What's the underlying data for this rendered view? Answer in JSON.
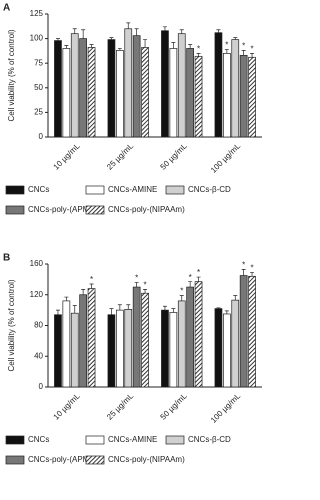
{
  "chart_data": [
    {
      "type": "bar",
      "panel_label": "A",
      "y_label": "Cell viability (% of control)",
      "categories": [
        "10 µg/mL",
        "25 µg/mL",
        "50 µg/mL",
        "100 µg/mL"
      ],
      "series": [
        {
          "name": "CNCs",
          "color": "#111111",
          "values": [
            98,
            99,
            108,
            106
          ],
          "errors": [
            2,
            2,
            4,
            3
          ]
        },
        {
          "name": "CNCs-AMINE",
          "color": "#ffffff",
          "values": [
            90,
            88,
            90,
            85
          ],
          "errors": [
            3,
            2,
            6,
            4
          ]
        },
        {
          "name": "CNCs-β-CD",
          "color": "#d0d0d0",
          "values": [
            105,
            110,
            105,
            99
          ],
          "errors": [
            5,
            6,
            4,
            2
          ]
        },
        {
          "name": "CNCs-poly-(APMA)",
          "color": "#777777",
          "values": [
            100,
            103,
            90,
            83
          ],
          "errors": [
            9,
            7,
            4,
            5
          ]
        },
        {
          "name": "CNCs-poly-(NIPAAm)",
          "color": "#555555",
          "hatch": true,
          "values": [
            91,
            91,
            82,
            81
          ],
          "errors": [
            3,
            8,
            3,
            4
          ]
        }
      ],
      "annotations": [
        {
          "text": "*",
          "series": 4,
          "category": 2
        },
        {
          "text": "*",
          "series": 1,
          "category": 3
        },
        {
          "text": "*",
          "series": 3,
          "category": 3
        },
        {
          "text": "*",
          "series": 4,
          "category": 3
        }
      ],
      "ylim": [
        0,
        125
      ],
      "yticks": [
        0,
        25,
        50,
        75,
        100,
        125
      ]
    },
    {
      "type": "bar",
      "panel_label": "B",
      "y_label": "Cell viability (% of control)",
      "categories": [
        "10 µg/mL",
        "25 µg/mL",
        "50 µg/mL",
        "100 µg/mL"
      ],
      "series": [
        {
          "name": "CNCs",
          "color": "#111111",
          "values": [
            94,
            94,
            100,
            102
          ],
          "errors": [
            6,
            8,
            5,
            1
          ]
        },
        {
          "name": "CNCs-AMINE",
          "color": "#ffffff",
          "values": [
            112,
            100,
            97,
            95
          ],
          "errors": [
            5,
            7,
            5,
            4
          ]
        },
        {
          "name": "CNCs-β-CD",
          "color": "#d0d0d0",
          "values": [
            96,
            101,
            112,
            113
          ],
          "errors": [
            10,
            6,
            7,
            6
          ]
        },
        {
          "name": "CNCs-poly-(APMA)",
          "color": "#777777",
          "values": [
            120,
            130,
            130,
            145
          ],
          "errors": [
            7,
            6,
            7,
            8
          ]
        },
        {
          "name": "CNCs-poly-(NIPAAm)",
          "color": "#555555",
          "hatch": true,
          "values": [
            128,
            122,
            137,
            144
          ],
          "errors": [
            6,
            5,
            6,
            5
          ]
        }
      ],
      "annotations": [
        {
          "text": "*",
          "series": 4,
          "category": 0
        },
        {
          "text": "*",
          "series": 3,
          "category": 1
        },
        {
          "text": "*",
          "series": 4,
          "category": 1
        },
        {
          "text": "*",
          "series": 2,
          "category": 2
        },
        {
          "text": "*",
          "series": 3,
          "category": 2
        },
        {
          "text": "*",
          "series": 4,
          "category": 2
        },
        {
          "text": "*",
          "series": 3,
          "category": 3
        },
        {
          "text": "*",
          "series": 4,
          "category": 3
        }
      ],
      "ylim": [
        0,
        160
      ],
      "yticks": [
        0,
        40,
        80,
        120,
        160
      ]
    }
  ]
}
